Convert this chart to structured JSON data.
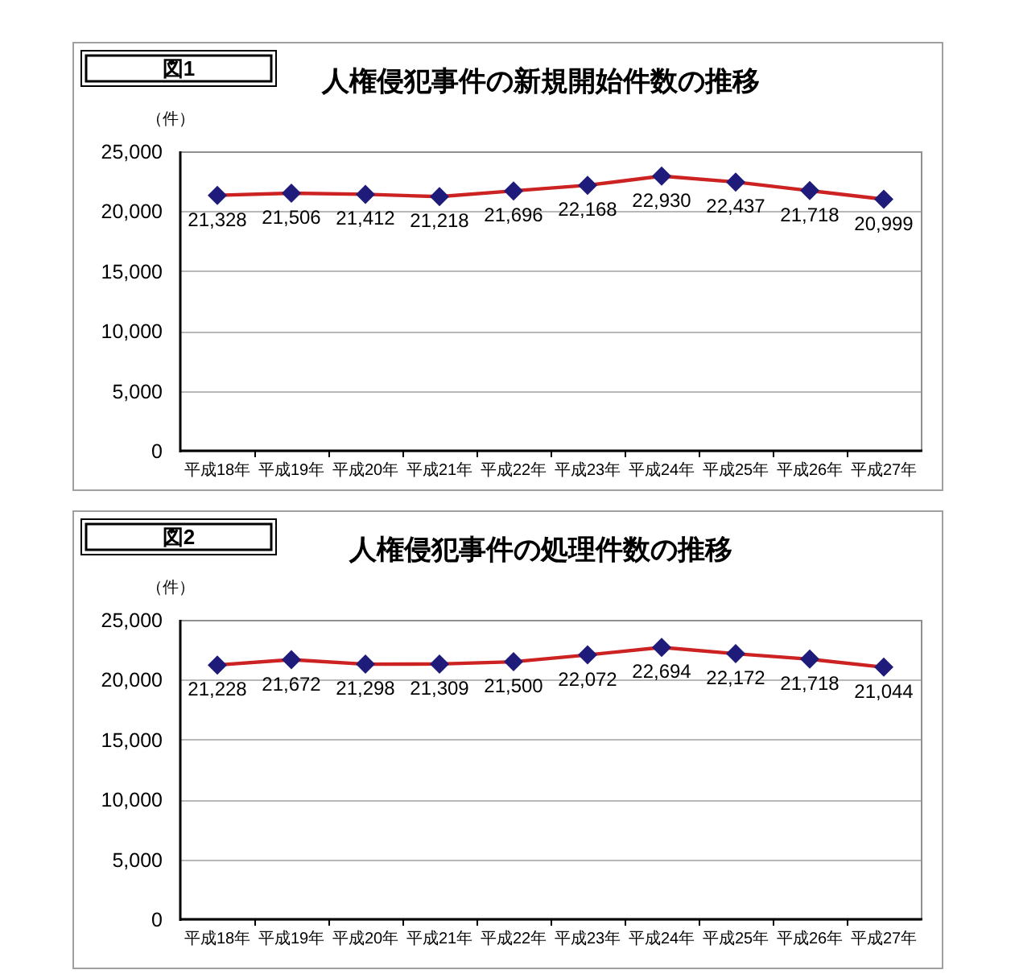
{
  "chart_data": [
    {
      "type": "line",
      "title": "人権侵犯事件の新規開始件数の推移",
      "ylabel": "（件）",
      "annotations": [
        "図1"
      ],
      "categories": [
        "平成18年",
        "平成19年",
        "平成20年",
        "平成21年",
        "平成22年",
        "平成23年",
        "平成24年",
        "平成25年",
        "平成26年",
        "平成27年"
      ],
      "values": [
        21328,
        21506,
        21412,
        21218,
        21696,
        22168,
        22930,
        22437,
        21718,
        20999
      ],
      "value_labels": [
        "21,328",
        "21,506",
        "21,412",
        "21,218",
        "21,696",
        "22,168",
        "22,930",
        "22,437",
        "21,718",
        "20,999"
      ],
      "color": "#cc2222",
      "colors": [
        "#1f1b7a",
        "#1f1b7a",
        "#1f1b7a",
        "#1f1b7a",
        "#1f1b7a",
        "#1f1b7a",
        "#1f1b7a",
        "#1f1b7a",
        "#1f1b7a",
        "#1f1b7a"
      ],
      "marker": "diamond",
      "line_style": "solid",
      "grid": "y",
      "ylim": [
        0,
        25000
      ],
      "yticks": [
        0,
        {
          "value": 5000,
          "label": "5,000"
        },
        {
          "value": 10000,
          "label": "10,000"
        },
        {
          "value": 15000,
          "label": "15,000"
        },
        {
          "value": 20000,
          "label": "20,000"
        },
        {
          "value": 25000,
          "label": "25,000"
        }
      ]
    },
    {
      "type": "line",
      "title": "人権侵犯事件の処理件数の推移",
      "ylabel": "（件）",
      "annotations": [
        "図2"
      ],
      "categories": [
        "平成18年",
        "平成19年",
        "平成20年",
        "平成21年",
        "平成22年",
        "平成23年",
        "平成24年",
        "平成25年",
        "平成26年",
        "平成27年"
      ],
      "values": [
        21228,
        21672,
        21298,
        21309,
        21500,
        22072,
        22694,
        22172,
        21718,
        21044
      ],
      "value_labels": [
        "21,228",
        "21,672",
        "21,298",
        "21,309",
        "21,500",
        "22,072",
        "22,694",
        "22,172",
        "21,718",
        "21,044"
      ],
      "color": "#cc2222",
      "colors": [
        "#1f1b7a",
        "#1f1b7a",
        "#1f1b7a",
        "#1f1b7a",
        "#1f1b7a",
        "#1f1b7a",
        "#1f1b7a",
        "#1f1b7a",
        "#1f1b7a",
        "#1f1b7a"
      ],
      "marker": "diamond",
      "line_style": "solid",
      "grid": "y",
      "ylim": [
        0,
        25000
      ],
      "yticks": [
        0,
        {
          "value": 5000,
          "label": "5,000"
        },
        {
          "value": 10000,
          "label": "10,000"
        },
        {
          "value": 15000,
          "label": "15,000"
        },
        {
          "value": 20000,
          "label": "20,000"
        },
        {
          "value": 25000,
          "label": "25,000"
        }
      ]
    }
  ]
}
